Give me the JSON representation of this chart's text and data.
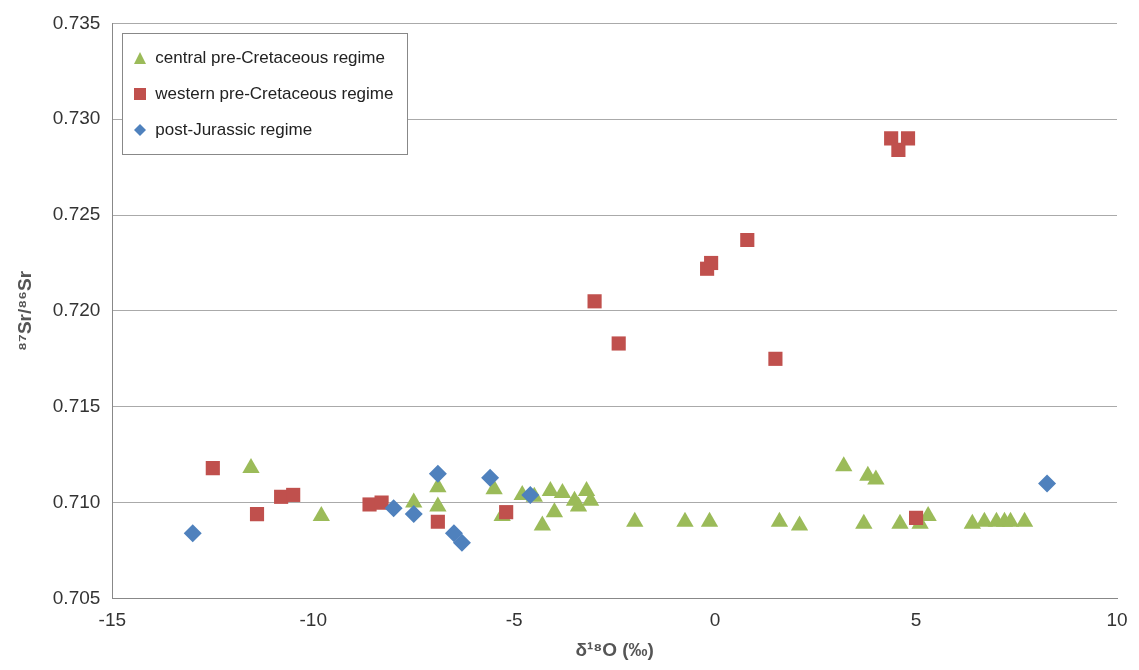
{
  "chart_data": {
    "type": "scatter",
    "xlabel": "δ¹⁸O (‰)",
    "ylabel": "⁸⁷Sr/⁸⁶Sr",
    "xlim": [
      -15,
      10
    ],
    "xticks": [
      -15,
      -10,
      -5,
      0,
      5,
      10
    ],
    "ylim": [
      0.705,
      0.735
    ],
    "yticks": [
      0.705,
      {
        "value": 0.71,
        "label": "0.710"
      },
      0.715,
      {
        "value": 0.72,
        "label": "0.720"
      },
      0.725,
      {
        "value": 0.73,
        "label": "0.730"
      },
      0.735
    ],
    "grid": "y",
    "legend": "top left",
    "series": [
      {
        "name": "central pre-Cretaceous regime",
        "color": "#9bbb59",
        "marker": "triangle",
        "x": [
          -11.55,
          -9.8,
          -7.5,
          -6.9,
          -6.9,
          -5.5,
          -5.3,
          -4.8,
          -4.5,
          -4.3,
          -4.1,
          -4.0,
          -3.8,
          -3.5,
          -3.4,
          -3.2,
          -3.1,
          -2.0,
          -0.75,
          -0.14,
          1.6,
          2.1,
          3.2,
          3.8,
          4.0,
          3.7,
          4.6,
          5.1,
          5.3,
          6.4,
          6.7,
          7.0,
          7.2,
          7.35,
          7.7
        ],
        "values": [
          0.7118,
          0.7093,
          0.71,
          0.7108,
          0.7098,
          0.7107,
          0.7093,
          0.7104,
          0.7103,
          0.7088,
          0.7106,
          0.7095,
          0.7105,
          0.7101,
          0.7098,
          0.7106,
          0.7101,
          0.709,
          0.709,
          0.709,
          0.709,
          0.7088,
          0.7119,
          0.7114,
          0.7112,
          0.7089,
          0.7089,
          0.7089,
          0.7093,
          0.7089,
          0.709,
          0.709,
          0.709,
          0.709,
          0.709
        ]
      },
      {
        "name": "western pre-Cretaceous regime",
        "color": "#c0504d",
        "marker": "square",
        "x": [
          -12.5,
          -11.4,
          -10.8,
          -10.5,
          -8.6,
          -8.3,
          -6.9,
          -5.2,
          -3.0,
          -2.4,
          -0.2,
          -0.1,
          0.8,
          1.5,
          4.38,
          4.56,
          4.8,
          5.0
        ],
        "values": [
          0.7118,
          0.7094,
          0.7103,
          0.7104,
          0.7099,
          0.71,
          0.709,
          0.7095,
          0.7205,
          0.7183,
          0.7222,
          0.7225,
          0.7237,
          0.7175,
          0.729,
          0.7284,
          0.729,
          0.7092
        ]
      },
      {
        "name": "post-Jurassic regime",
        "color": "#4f81bd",
        "marker": "diamond",
        "x": [
          -13.0,
          -6.9,
          -5.6,
          -4.6,
          -8.0,
          -7.5,
          -6.5,
          -6.3,
          8.26
        ],
        "values": [
          0.7084,
          0.7115,
          0.7113,
          0.7104,
          0.7097,
          0.7094,
          0.7084,
          0.7079,
          0.711
        ]
      }
    ]
  }
}
